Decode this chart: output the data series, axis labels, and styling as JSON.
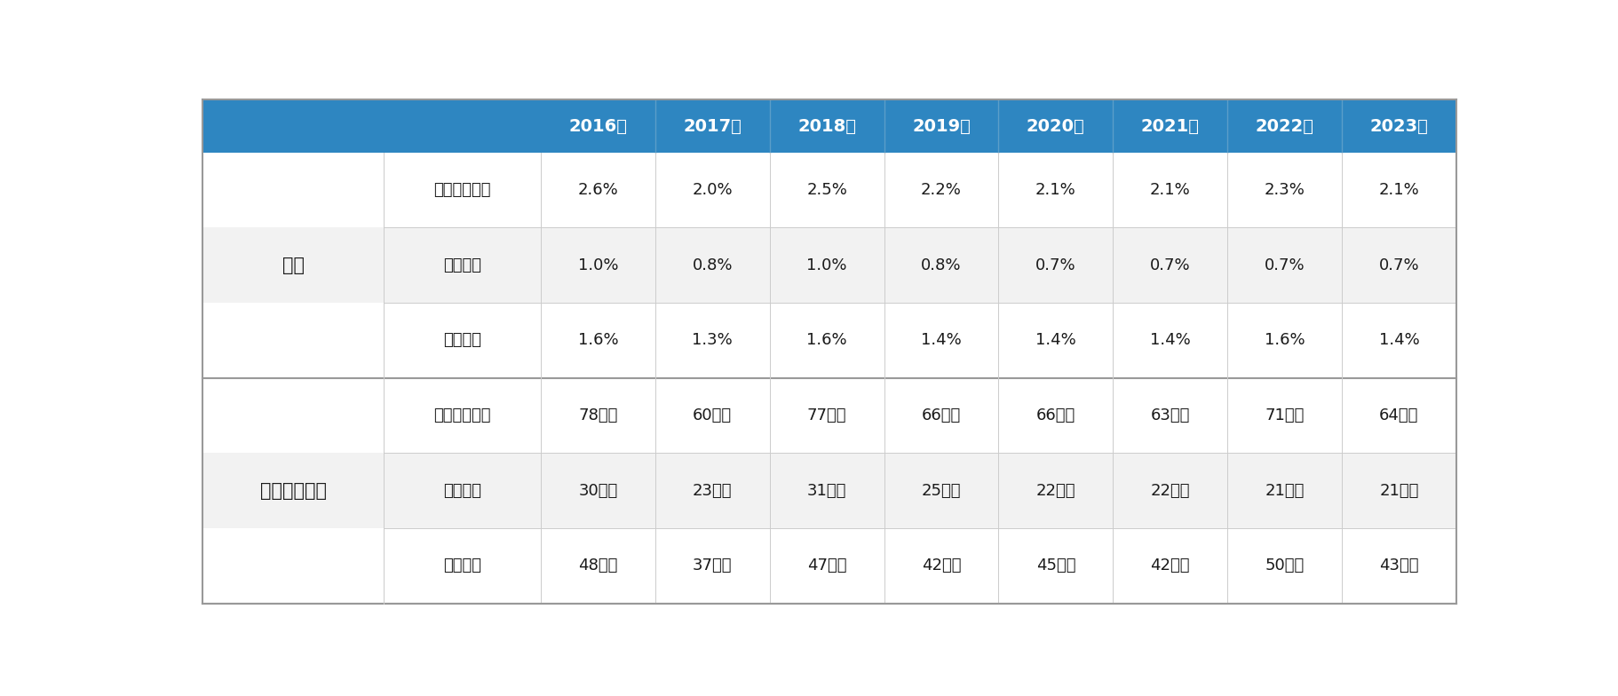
{
  "years": [
    "2016年",
    "2017年",
    "2018年",
    "2019年",
    "2020年",
    "2021年",
    "2022年",
    "2023年"
  ],
  "row_groups": [
    {
      "group_label": "割合",
      "rows": [
        {
          "label": "転勤経験あり",
          "values": [
            "2.6%",
            "2.0%",
            "2.5%",
            "2.2%",
            "2.1%",
            "2.1%",
            "2.3%",
            "2.1%"
          ]
        },
        {
          "label": "家族帯同",
          "values": [
            "1.0%",
            "0.8%",
            "1.0%",
            "0.8%",
            "0.7%",
            "0.7%",
            "0.7%",
            "0.7%"
          ]
        },
        {
          "label": "単身赴任",
          "values": [
            "1.6%",
            "1.3%",
            "1.6%",
            "1.4%",
            "1.4%",
            "1.4%",
            "1.6%",
            "1.4%"
          ]
        }
      ]
    },
    {
      "group_label": "人口推計規模",
      "rows": [
        {
          "label": "転勤経験あり",
          "values": [
            "78万人",
            "60万人",
            "77万人",
            "66万人",
            "66万人",
            "63万人",
            "71万人",
            "64万人"
          ]
        },
        {
          "label": "家族帯同",
          "values": [
            "30万人",
            "23万人",
            "31万人",
            "25万人",
            "22万人",
            "22万人",
            "21万人",
            "21万人"
          ]
        },
        {
          "label": "単身赴任",
          "values": [
            "48万人",
            "37万人",
            "47万人",
            "42万人",
            "45万人",
            "42万人",
            "50万人",
            "43万人"
          ]
        }
      ]
    }
  ],
  "header_color": "#2E86C1",
  "header_text_color": "#FFFFFF",
  "text_color": "#1a1a1a",
  "bg_white": "#FFFFFF",
  "bg_gray": "#F2F2F2",
  "grid_color_thin": "#CCCCCC",
  "grid_color_thick": "#999999",
  "header_sep_color": "#5B9EC9",
  "font_size_header": 14,
  "font_size_group": 15,
  "font_size_label": 13,
  "font_size_value": 13
}
